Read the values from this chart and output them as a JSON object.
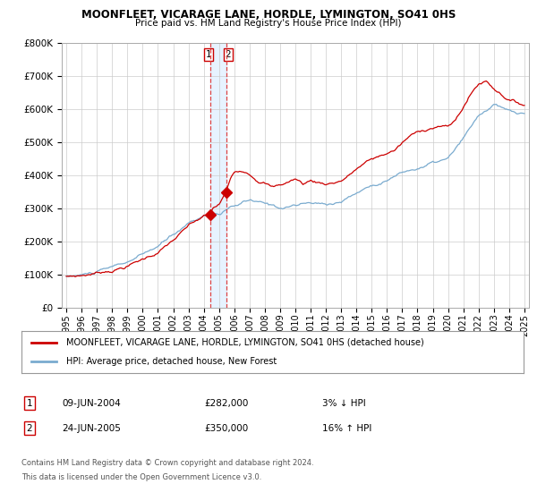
{
  "title": "MOONFLEET, VICARAGE LANE, HORDLE, LYMINGTON, SO41 0HS",
  "subtitle": "Price paid vs. HM Land Registry's House Price Index (HPI)",
  "legend_label_red": "MOONFLEET, VICARAGE LANE, HORDLE, LYMINGTON, SO41 0HS (detached house)",
  "legend_label_blue": "HPI: Average price, detached house, New Forest",
  "footer_line1": "Contains HM Land Registry data © Crown copyright and database right 2024.",
  "footer_line2": "This data is licensed under the Open Government Licence v3.0.",
  "transaction1_date": "09-JUN-2004",
  "transaction1_price": "£282,000",
  "transaction1_hpi": "3% ↓ HPI",
  "transaction2_date": "24-JUN-2005",
  "transaction2_price": "£350,000",
  "transaction2_hpi": "16% ↑ HPI",
  "vline1_x": 2004.44,
  "vline2_x": 2005.48,
  "dot1_x": 2004.44,
  "dot1_y": 282000,
  "dot2_x": 2005.48,
  "dot2_y": 350000,
  "ylim_min": 0,
  "ylim_max": 800000,
  "xlim_min": 1994.7,
  "xlim_max": 2025.3,
  "red_color": "#cc0000",
  "blue_color": "#7aabcf",
  "vline_color": "#dd4444",
  "vline_fill_color": "#ddeeff",
  "dot_color": "#cc0000",
  "yticks": [
    0,
    100000,
    200000,
    300000,
    400000,
    500000,
    600000,
    700000,
    800000
  ],
  "xtick_years": [
    1995,
    1996,
    1997,
    1998,
    1999,
    2000,
    2001,
    2002,
    2003,
    2004,
    2005,
    2006,
    2007,
    2008,
    2009,
    2010,
    2011,
    2012,
    2013,
    2014,
    2015,
    2016,
    2017,
    2018,
    2019,
    2020,
    2021,
    2022,
    2023,
    2024,
    2025
  ]
}
